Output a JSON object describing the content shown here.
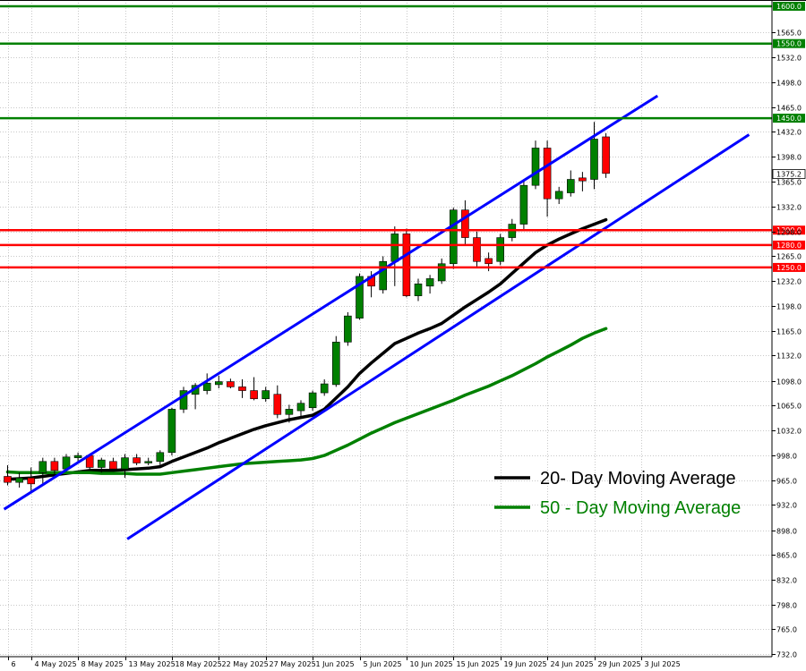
{
  "chart_data": {
    "type": "candlestick",
    "y_ticks": [
      732.0,
      765.0,
      798.0,
      832.0,
      865.0,
      898.0,
      932.0,
      965.0,
      998.0,
      1032.0,
      1065.0,
      1098.0,
      1132.0,
      1165.0,
      1198.0,
      1232.0,
      1265.0,
      1298.0,
      1332.0,
      1365.0,
      1398.0,
      1432.0,
      1465.0,
      1498.0,
      1532.0,
      1565.0
    ],
    "ylim": [
      719,
      1612
    ],
    "x_labels": [
      {
        "i": 0,
        "text": "6"
      },
      {
        "i": 2,
        "text": "4 May 2025"
      },
      {
        "i": 6,
        "text": "8 May 2025"
      },
      {
        "i": 10,
        "text": "13 May 2025"
      },
      {
        "i": 14,
        "text": "18 May 2025"
      },
      {
        "i": 18,
        "text": "22 May 2025"
      },
      {
        "i": 22,
        "text": "27 May 2025"
      },
      {
        "i": 26,
        "text": "1 Jun 2025"
      },
      {
        "i": 30,
        "text": "5 Jun 2025"
      },
      {
        "i": 34,
        "text": "10 Jun 2025"
      },
      {
        "i": 38,
        "text": "15 Jun 2025"
      },
      {
        "i": 42,
        "text": "19 Jun 2025"
      },
      {
        "i": 46,
        "text": "24 Jun 2025"
      },
      {
        "i": 50,
        "text": "29 Jun 2025"
      },
      {
        "i": 54,
        "text": "3 Jul 2025"
      }
    ],
    "candles": [
      {
        "o": 970,
        "h": 985,
        "l": 958,
        "c": 962
      },
      {
        "o": 962,
        "h": 975,
        "l": 955,
        "c": 968
      },
      {
        "o": 968,
        "h": 982,
        "l": 950,
        "c": 960
      },
      {
        "o": 975,
        "h": 995,
        "l": 960,
        "c": 990
      },
      {
        "o": 990,
        "h": 995,
        "l": 972,
        "c": 978
      },
      {
        "o": 980,
        "h": 1000,
        "l": 978,
        "c": 996
      },
      {
        "o": 995,
        "h": 1002,
        "l": 990,
        "c": 998
      },
      {
        "o": 998,
        "h": 1000,
        "l": 978,
        "c": 982
      },
      {
        "o": 982,
        "h": 995,
        "l": 975,
        "c": 992
      },
      {
        "o": 990,
        "h": 995,
        "l": 978,
        "c": 980
      },
      {
        "o": 980,
        "h": 1000,
        "l": 968,
        "c": 995
      },
      {
        "o": 995,
        "h": 1000,
        "l": 985,
        "c": 988
      },
      {
        "o": 988,
        "h": 995,
        "l": 985,
        "c": 990
      },
      {
        "o": 990,
        "h": 1005,
        "l": 985,
        "c": 1002
      },
      {
        "o": 1002,
        "h": 1062,
        "l": 998,
        "c": 1060
      },
      {
        "o": 1060,
        "h": 1090,
        "l": 1055,
        "c": 1085
      },
      {
        "o": 1080,
        "h": 1095,
        "l": 1060,
        "c": 1092
      },
      {
        "o": 1085,
        "h": 1108,
        "l": 1080,
        "c": 1095
      },
      {
        "o": 1093,
        "h": 1105,
        "l": 1088,
        "c": 1097
      },
      {
        "o": 1097,
        "h": 1101,
        "l": 1088,
        "c": 1090
      },
      {
        "o": 1090,
        "h": 1100,
        "l": 1075,
        "c": 1085
      },
      {
        "o": 1085,
        "h": 1103,
        "l": 1072,
        "c": 1074
      },
      {
        "o": 1074,
        "h": 1090,
        "l": 1070,
        "c": 1085
      },
      {
        "o": 1080,
        "h": 1092,
        "l": 1048,
        "c": 1053
      },
      {
        "o": 1053,
        "h": 1066,
        "l": 1042,
        "c": 1060
      },
      {
        "o": 1058,
        "h": 1072,
        "l": 1050,
        "c": 1068
      },
      {
        "o": 1062,
        "h": 1085,
        "l": 1058,
        "c": 1082
      },
      {
        "o": 1082,
        "h": 1100,
        "l": 1078,
        "c": 1094
      },
      {
        "o": 1093,
        "h": 1158,
        "l": 1090,
        "c": 1150
      },
      {
        "o": 1150,
        "h": 1190,
        "l": 1145,
        "c": 1185
      },
      {
        "o": 1182,
        "h": 1242,
        "l": 1180,
        "c": 1238
      },
      {
        "o": 1238,
        "h": 1245,
        "l": 1210,
        "c": 1225
      },
      {
        "o": 1220,
        "h": 1265,
        "l": 1215,
        "c": 1258
      },
      {
        "o": 1258,
        "h": 1305,
        "l": 1225,
        "c": 1295
      },
      {
        "o": 1295,
        "h": 1302,
        "l": 1210,
        "c": 1212
      },
      {
        "o": 1212,
        "h": 1235,
        "l": 1205,
        "c": 1228
      },
      {
        "o": 1225,
        "h": 1240,
        "l": 1215,
        "c": 1235
      },
      {
        "o": 1232,
        "h": 1262,
        "l": 1228,
        "c": 1255
      },
      {
        "o": 1255,
        "h": 1330,
        "l": 1248,
        "c": 1327
      },
      {
        "o": 1327,
        "h": 1340,
        "l": 1280,
        "c": 1290
      },
      {
        "o": 1290,
        "h": 1298,
        "l": 1250,
        "c": 1258
      },
      {
        "o": 1262,
        "h": 1270,
        "l": 1245,
        "c": 1255
      },
      {
        "o": 1258,
        "h": 1295,
        "l": 1253,
        "c": 1290
      },
      {
        "o": 1290,
        "h": 1315,
        "l": 1285,
        "c": 1308
      },
      {
        "o": 1308,
        "h": 1365,
        "l": 1300,
        "c": 1360
      },
      {
        "o": 1360,
        "h": 1420,
        "l": 1355,
        "c": 1410
      },
      {
        "o": 1410,
        "h": 1420,
        "l": 1318,
        "c": 1342
      },
      {
        "o": 1342,
        "h": 1358,
        "l": 1335,
        "c": 1352
      },
      {
        "o": 1350,
        "h": 1380,
        "l": 1345,
        "c": 1368
      },
      {
        "o": 1370,
        "h": 1378,
        "l": 1352,
        "c": 1366
      },
      {
        "o": 1368,
        "h": 1445,
        "l": 1355,
        "c": 1422
      },
      {
        "o": 1425,
        "h": 1430,
        "l": 1370,
        "c": 1376
      }
    ],
    "series": [
      {
        "name": "20- Day Moving Average",
        "color": "#000000",
        "values": [
          966,
          967,
          968,
          970,
          972,
          974,
          976,
          978,
          978,
          978,
          979,
          980,
          981,
          983,
          990,
          996,
          1002,
          1008,
          1015,
          1021,
          1027,
          1033,
          1038,
          1042,
          1046,
          1049,
          1052,
          1060,
          1075,
          1090,
          1108,
          1122,
          1135,
          1148,
          1155,
          1162,
          1168,
          1175,
          1186,
          1197,
          1207,
          1217,
          1228,
          1242,
          1256,
          1270,
          1280,
          1288,
          1295,
          1302,
          1308,
          1314
        ]
      },
      {
        "name": "50 - Day Moving Average",
        "color": "#008000",
        "values": [
          976,
          975,
          975,
          975,
          975,
          975,
          975,
          975,
          974,
          974,
          974,
          973,
          973,
          973,
          975,
          977,
          979,
          981,
          983,
          985,
          987,
          988,
          989,
          990,
          991,
          992,
          994,
          998,
          1005,
          1012,
          1020,
          1028,
          1035,
          1042,
          1048,
          1054,
          1060,
          1066,
          1072,
          1079,
          1085,
          1091,
          1098,
          1105,
          1113,
          1121,
          1130,
          1138,
          1146,
          1155,
          1162,
          1168
        ]
      }
    ],
    "horizontal_levels": [
      {
        "value": 1600.0,
        "label": "1600.0",
        "color": "#008000"
      },
      {
        "value": 1550.0,
        "label": "1550.0",
        "color": "#008000"
      },
      {
        "value": 1450.0,
        "label": "1450.0",
        "color": "#008000"
      },
      {
        "value": 1300.0,
        "label": "1300.0",
        "color": "#ff0000"
      },
      {
        "value": 1280.0,
        "label": "1280.0",
        "color": "#ff0000"
      },
      {
        "value": 1250.0,
        "label": "1250.0",
        "color": "#ff0000"
      }
    ],
    "current_price": {
      "value": 1375.2,
      "label": "1375.2"
    },
    "trend_lines": [
      {
        "name": "channel-upper",
        "color": "#0000ff",
        "x1": -0.3,
        "y1": 926,
        "x2": 55.4,
        "y2": 1480
      },
      {
        "name": "channel-lower",
        "color": "#0000ff",
        "x1": 10.2,
        "y1": 886,
        "x2": 63.2,
        "y2": 1428
      }
    ],
    "legend_placement": "bottom-right",
    "grid": true,
    "colors": {
      "up": "#008000",
      "down": "#ff0000",
      "grid": "#c8c8c8",
      "axis": "#000000"
    }
  }
}
